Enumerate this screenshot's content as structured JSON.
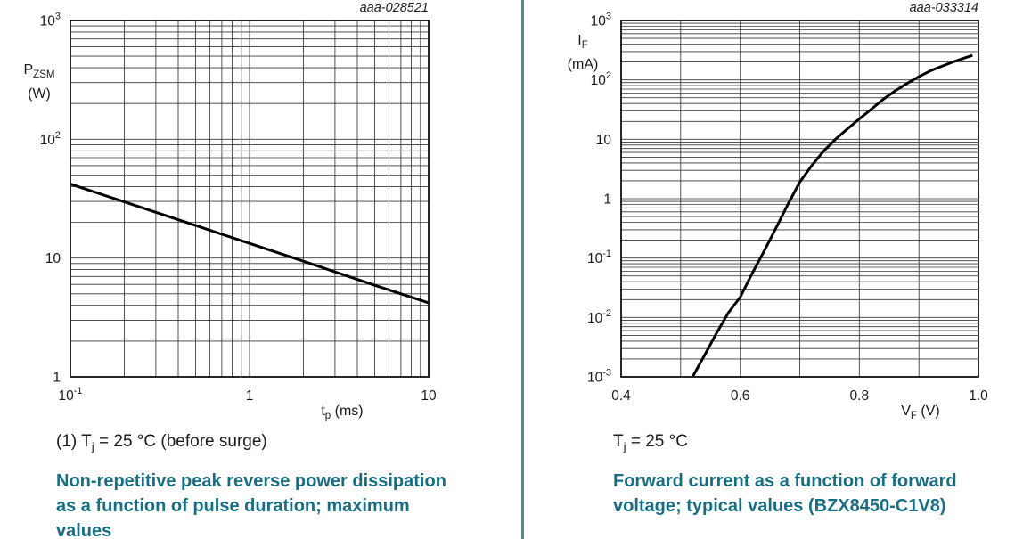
{
  "page": {
    "background": "#ffffff",
    "accent_teal": "#166f83",
    "divider_color": "#4c8f97",
    "text_color": "#1a1a1a",
    "grid_color": "#383838",
    "curve_color": "#000000"
  },
  "left_figure": {
    "figure_id": "aaa-028521",
    "y_axis_label": {
      "base": "P",
      "sub": "ZSM",
      "unit": "(W)"
    },
    "x_axis_label": {
      "base": "t",
      "sub": "p",
      "unit": " (ms)"
    },
    "note": {
      "prefix": "(1) T",
      "sub": "j",
      "suffix": " = 25 °C (before surge)"
    },
    "caption_lines": [
      "Non-repetitive peak reverse power dissipation",
      "as a function of pulse duration; maximum",
      "values"
    ]
  },
  "right_figure": {
    "figure_id": "aaa-033314",
    "y_axis_label": {
      "base": "I",
      "sub": "F",
      "unit": "(mA)"
    },
    "x_axis_label": {
      "base": "V",
      "sub": "F",
      "unit": " (V)"
    },
    "note": {
      "prefix": "T",
      "sub": "j",
      "suffix": " = 25 °C"
    },
    "caption_lines": [
      "Forward current as a function of forward",
      "voltage; typical values (BZX8450-C1V8)"
    ]
  },
  "chart_data": [
    {
      "type": "line",
      "title": "Non-repetitive peak reverse power dissipation as a function of pulse duration; maximum values",
      "figure_id": "aaa-028521",
      "condition": "(1) Tj = 25 °C (before surge)",
      "xlabel": "tp (ms)",
      "ylabel": "PZSM (W)",
      "x_scale": "log",
      "y_scale": "log",
      "xlim": [
        0.1,
        10
      ],
      "ylim": [
        1,
        1000
      ],
      "grid": "on",
      "x_ticks": [
        {
          "v": 0.1,
          "label": "10^-1"
        },
        {
          "v": 1,
          "label": "1"
        },
        {
          "v": 10,
          "label": "10"
        }
      ],
      "y_ticks": [
        {
          "v": 1000,
          "label": "10^3"
        },
        {
          "v": 100,
          "label": "10^2"
        },
        {
          "v": 10,
          "label": "10"
        },
        {
          "v": 1,
          "label": "1"
        }
      ],
      "series": [
        {
          "name": "PZSM maximum",
          "points": [
            [
              0.1,
              42
            ],
            [
              0.2,
              29.7
            ],
            [
              0.5,
              18.8
            ],
            [
              1,
              13.3
            ],
            [
              2,
              9.4
            ],
            [
              5,
              5.9
            ],
            [
              10,
              4.2
            ]
          ]
        }
      ]
    },
    {
      "type": "line",
      "title": "Forward current as a function of forward voltage; typical values (BZX8450-C1V8)",
      "figure_id": "aaa-033314",
      "condition": "Tj = 25 °C",
      "xlabel": "VF (V)",
      "ylabel": "IF (mA)",
      "x_scale": "linear",
      "y_scale": "log",
      "xlim": [
        0.4,
        1.0
      ],
      "ylim": [
        0.001,
        1000
      ],
      "grid": "on",
      "x_minor_step": 0.1,
      "x_ticks": [
        {
          "v": 0.4,
          "label": "0.4"
        },
        {
          "v": 0.6,
          "label": "0.6"
        },
        {
          "v": 0.8,
          "label": "0.8"
        },
        {
          "v": 1.0,
          "label": "1.0"
        }
      ],
      "y_ticks": [
        {
          "v": 1000,
          "label": "10^3"
        },
        {
          "v": 100,
          "label": "10^2"
        },
        {
          "v": 10,
          "label": "10"
        },
        {
          "v": 1,
          "label": "1"
        },
        {
          "v": 0.1,
          "label": "10^-1"
        },
        {
          "v": 0.01,
          "label": "10^-2"
        },
        {
          "v": 0.001,
          "label": "10^-3"
        }
      ],
      "series": [
        {
          "name": "IF typical",
          "points": [
            [
              0.52,
              0.001
            ],
            [
              0.54,
              0.0023
            ],
            [
              0.56,
              0.0054
            ],
            [
              0.58,
              0.012
            ],
            [
              0.6,
              0.022
            ],
            [
              0.62,
              0.055
            ],
            [
              0.64,
              0.13
            ],
            [
              0.66,
              0.32
            ],
            [
              0.68,
              0.8
            ],
            [
              0.7,
              1.9
            ],
            [
              0.72,
              3.6
            ],
            [
              0.74,
              6.3
            ],
            [
              0.76,
              10
            ],
            [
              0.78,
              15
            ],
            [
              0.8,
              22
            ],
            [
              0.82,
              32
            ],
            [
              0.84,
              47
            ],
            [
              0.86,
              65
            ],
            [
              0.88,
              87
            ],
            [
              0.9,
              113
            ],
            [
              0.92,
              143
            ],
            [
              0.94,
              172
            ],
            [
              0.96,
              205
            ],
            [
              0.98,
              240
            ],
            [
              0.99,
              258
            ]
          ]
        }
      ]
    }
  ]
}
